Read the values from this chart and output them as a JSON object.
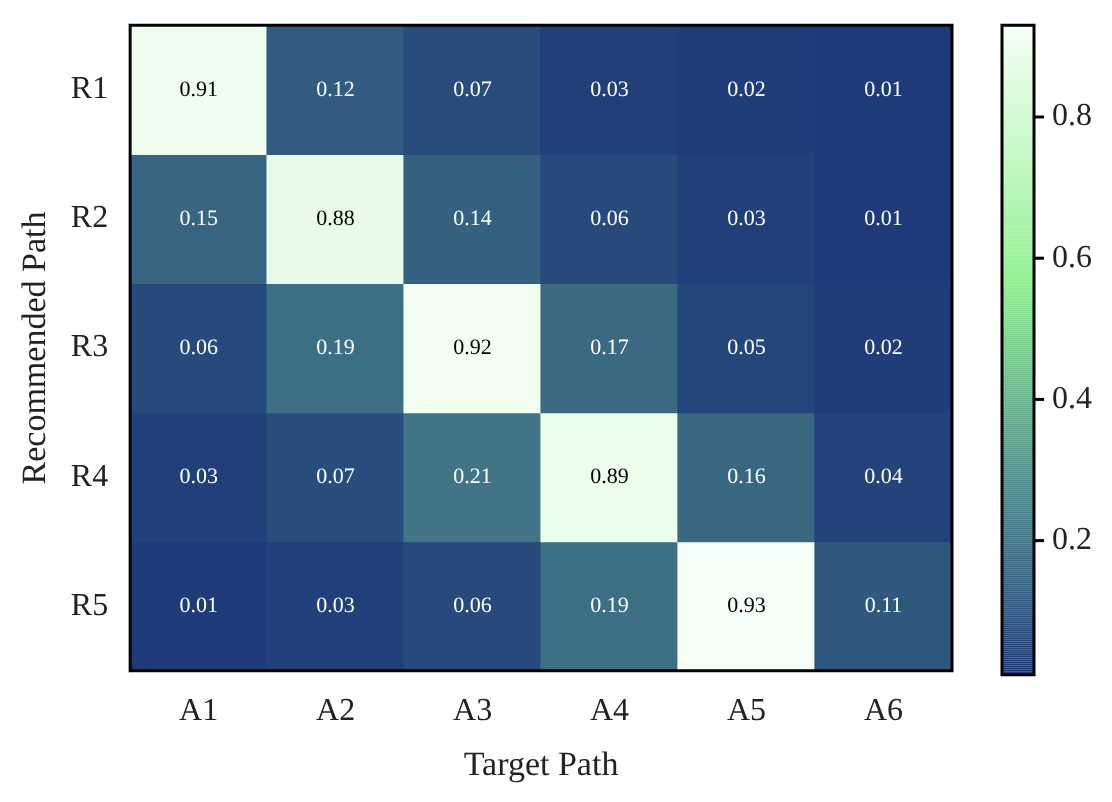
{
  "chart_data": {
    "type": "heatmap",
    "xlabel": "Target Path",
    "ylabel": "Recommended Path",
    "categories": [
      "A1",
      "A2",
      "A3",
      "A4",
      "A5",
      "A6"
    ],
    "y_categories": [
      "R1",
      "R2",
      "R3",
      "R4",
      "R5"
    ],
    "cells": [
      [
        0.91,
        0.12,
        0.07,
        0.03,
        0.02,
        0.01
      ],
      [
        0.15,
        0.88,
        0.14,
        0.06,
        0.03,
        0.01
      ],
      [
        0.06,
        0.19,
        0.92,
        0.17,
        0.05,
        0.02
      ],
      [
        0.03,
        0.07,
        0.21,
        0.89,
        0.16,
        0.04
      ],
      [
        0.01,
        0.03,
        0.06,
        0.19,
        0.93,
        0.11
      ]
    ],
    "data_labels": true,
    "clim": [
      0.01,
      0.93
    ],
    "cticks": [
      0.2,
      0.4,
      0.6,
      0.8
    ]
  }
}
